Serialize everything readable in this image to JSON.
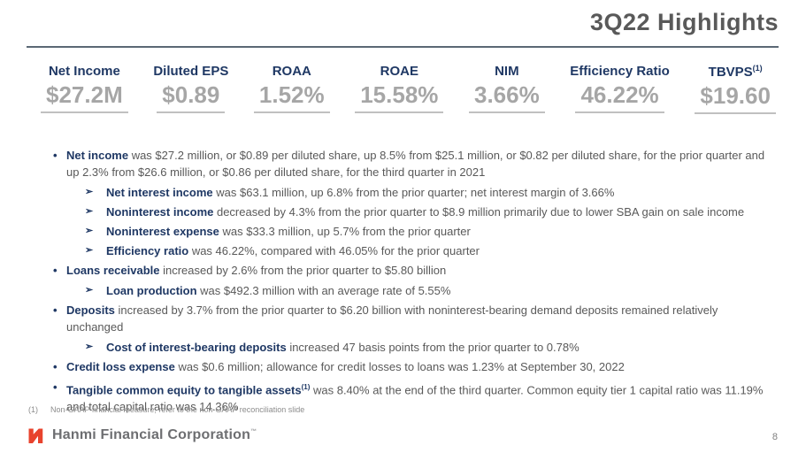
{
  "slide": {
    "title": "3Q22 Highlights",
    "page_number": "8"
  },
  "metrics": [
    {
      "label": "Net Income",
      "label_sup": "",
      "value": "$27.2M"
    },
    {
      "label": "Diluted EPS",
      "label_sup": "",
      "value": "$0.89"
    },
    {
      "label": "ROAA",
      "label_sup": "",
      "value": "1.52%"
    },
    {
      "label": "ROAE",
      "label_sup": "",
      "value": "15.58%"
    },
    {
      "label": "NIM",
      "label_sup": "",
      "value": "3.66%"
    },
    {
      "label": "Efficiency Ratio",
      "label_sup": "",
      "value": "46.22%"
    },
    {
      "label": "TBVPS",
      "label_sup": "(1)",
      "value": "$19.60"
    }
  ],
  "bullet_markers": {
    "level1": "•",
    "level2": "➢"
  },
  "bullets": [
    {
      "level": 1,
      "lead": "Net income",
      "lead_sup": "",
      "rest": " was $27.2 million, or $0.89 per diluted share, up 8.5% from $25.1 million, or $0.82 per diluted share, for the prior quarter and up 2.3% from $26.6 million, or $0.86 per diluted share, for the third quarter in 2021"
    },
    {
      "level": 2,
      "lead": "Net interest income",
      "lead_sup": "",
      "rest": " was $63.1 million, up 6.8% from the prior quarter; net interest margin of 3.66%"
    },
    {
      "level": 2,
      "lead": "Noninterest income",
      "lead_sup": "",
      "rest": " decreased by 4.3% from the prior quarter to $8.9 million primarily due to lower SBA gain on sale income"
    },
    {
      "level": 2,
      "lead": "Noninterest expense",
      "lead_sup": "",
      "rest": " was $33.3 million, up 5.7% from the prior quarter"
    },
    {
      "level": 2,
      "lead": "Efficiency ratio",
      "lead_sup": "",
      "rest": " was 46.22%, compared with 46.05% for the prior quarter"
    },
    {
      "level": 1,
      "lead": "Loans receivable",
      "lead_sup": "",
      "rest": " increased by 2.6% from the prior quarter to $5.80 billion"
    },
    {
      "level": 2,
      "lead": "Loan production",
      "lead_sup": "",
      "rest": " was $492.3 million with an average rate of 5.55%"
    },
    {
      "level": 1,
      "lead": "Deposits",
      "lead_sup": "",
      "rest": " increased by 3.7% from the prior quarter to $6.20 billion with noninterest-bearing demand deposits remained relatively unchanged"
    },
    {
      "level": 2,
      "lead": "Cost of interest-bearing deposits",
      "lead_sup": "",
      "rest": " increased 47 basis points from the prior quarter to 0.78%"
    },
    {
      "level": 1,
      "lead": "Credit loss expense",
      "lead_sup": "",
      "rest": " was $0.6 million; allowance for credit losses to loans was 1.23% at September 30, 2022"
    },
    {
      "level": 1,
      "lead": "Tangible common equity to tangible assets",
      "lead_sup": "(1)",
      "rest": " was 8.40% at the end of the third quarter. Common equity tier 1 capital ratio was 11.19% and total capital ratio was 14.36%"
    }
  ],
  "footnote": {
    "marker": "(1)",
    "text": "Non-GAAP financial measure; refer to the non-GAAP reconciliation slide"
  },
  "footer": {
    "company": "Hanmi Financial Corporation",
    "trademark": "™",
    "logo_icon": "hanmi-h-mark"
  },
  "colors": {
    "navy": "#1f3864",
    "body_gray": "#595959",
    "value_gray": "#a6a6a6",
    "underline_gray": "#c0c0c0",
    "divider": "#5b6875",
    "logo_red": "#e8432d",
    "logo_text": "#6d6e71"
  }
}
